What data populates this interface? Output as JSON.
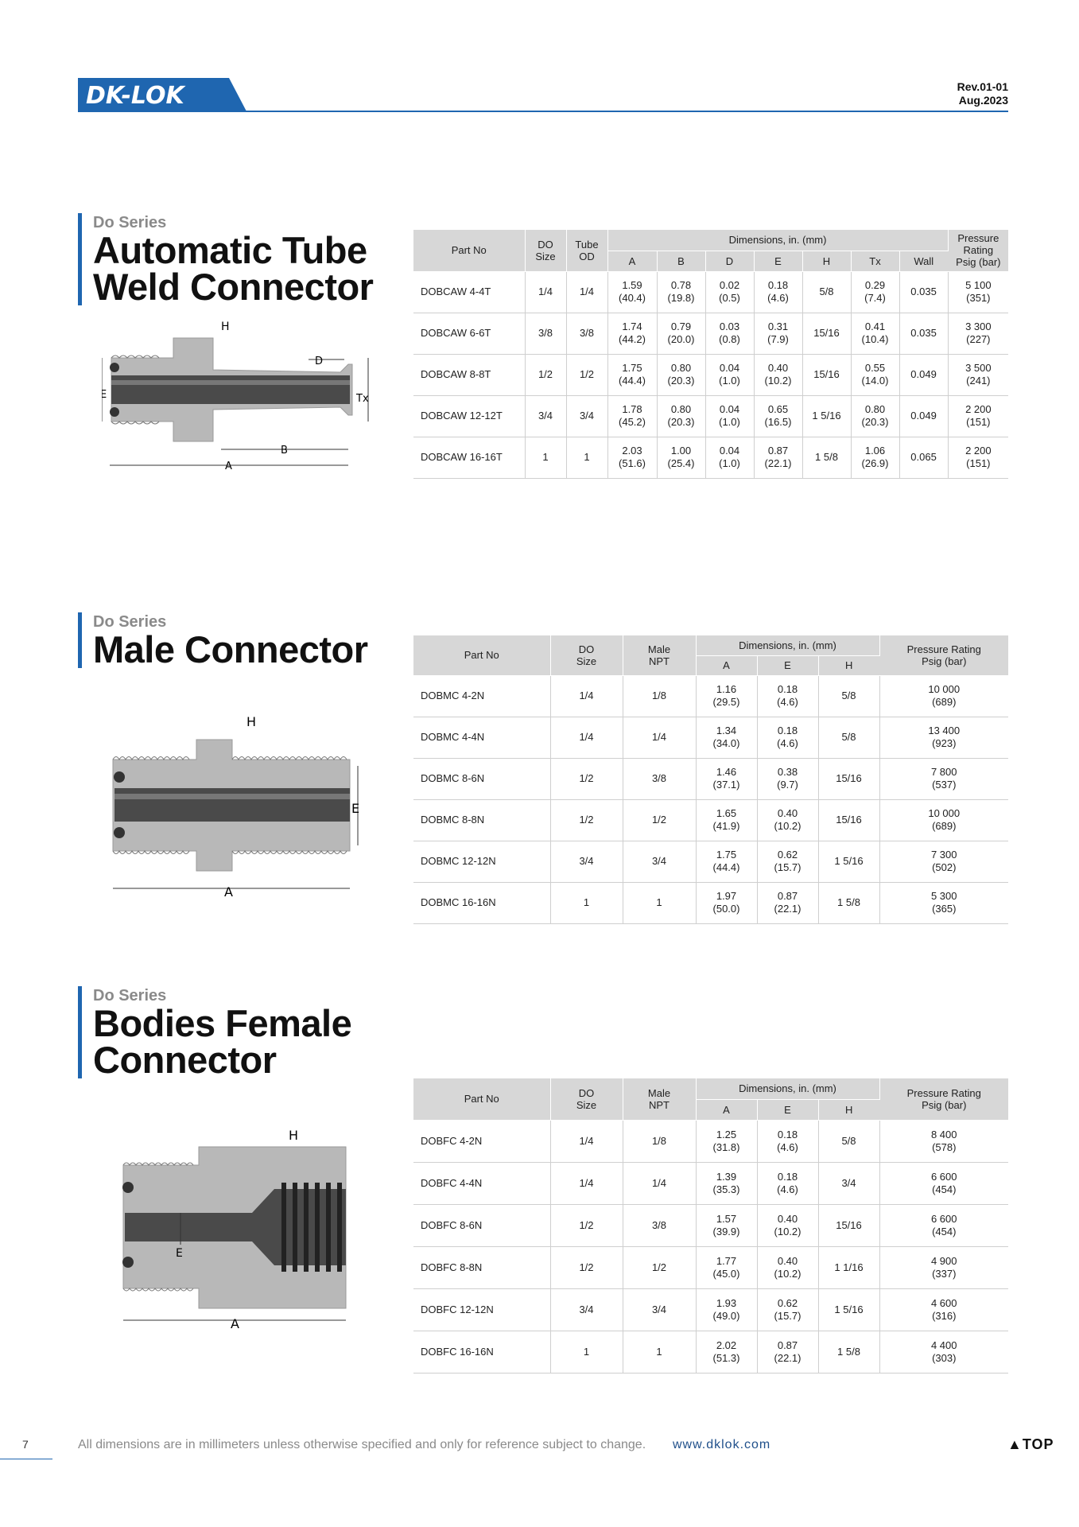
{
  "header": {
    "logo_text": "DK-LOK",
    "rev": "Rev.01-01",
    "date": "Aug.2023"
  },
  "sections": [
    {
      "series": "Do Series",
      "title_lines": [
        "Automatic Tube",
        "Weld Connector"
      ],
      "diagram_labels": [
        "H",
        "D",
        "E",
        "Tx",
        "B",
        "A"
      ],
      "table": {
        "top_headers": [
          "Part No",
          "DO\nSize",
          "Tube\nOD",
          "Dimensions, in. (mm)",
          "Pressure\nRating\nPsig (bar)"
        ],
        "dim_headers": [
          "A",
          "B",
          "D",
          "E",
          "H",
          "Tx",
          "Wall"
        ],
        "rows": [
          [
            "DOBCAW 4-4T",
            "1/4",
            "1/4",
            "1.59\n(40.4)",
            "0.78\n(19.8)",
            "0.02\n(0.5)",
            "0.18\n(4.6)",
            "5/8",
            "0.29\n(7.4)",
            "0.035",
            "5 100\n(351)"
          ],
          [
            "DOBCAW 6-6T",
            "3/8",
            "3/8",
            "1.74\n(44.2)",
            "0.79\n(20.0)",
            "0.03\n(0.8)",
            "0.31\n(7.9)",
            "15/16",
            "0.41\n(10.4)",
            "0.035",
            "3 300\n(227)"
          ],
          [
            "DOBCAW 8-8T",
            "1/2",
            "1/2",
            "1.75\n(44.4)",
            "0.80\n(20.3)",
            "0.04\n(1.0)",
            "0.40\n(10.2)",
            "15/16",
            "0.55\n(14.0)",
            "0.049",
            "3 500\n(241)"
          ],
          [
            "DOBCAW 12-12T",
            "3/4",
            "3/4",
            "1.78\n(45.2)",
            "0.80\n(20.3)",
            "0.04\n(1.0)",
            "0.65\n(16.5)",
            "1 5/16",
            "0.80\n(20.3)",
            "0.049",
            "2 200\n(151)"
          ],
          [
            "DOBCAW 16-16T",
            "1",
            "1",
            "2.03\n(51.6)",
            "1.00\n(25.4)",
            "0.04\n(1.0)",
            "0.87\n(22.1)",
            "1 5/8",
            "1.06\n(26.9)",
            "0.065",
            "2 200\n(151)"
          ]
        ]
      }
    },
    {
      "series": "Do Series",
      "title_lines": [
        "Male Connector"
      ],
      "diagram_labels": [
        "H",
        "E",
        "A"
      ],
      "table": {
        "top_headers": [
          "Part No",
          "DO\nSize",
          "Male\nNPT",
          "Dimensions, in. (mm)",
          "Pressure Rating\nPsig (bar)"
        ],
        "dim_headers": [
          "A",
          "E",
          "H"
        ],
        "rows": [
          [
            "DOBMC 4-2N",
            "1/4",
            "1/8",
            "1.16\n(29.5)",
            "0.18\n(4.6)",
            "5/8",
            "10 000\n(689)"
          ],
          [
            "DOBMC 4-4N",
            "1/4",
            "1/4",
            "1.34\n(34.0)",
            "0.18\n(4.6)",
            "5/8",
            "13 400\n(923)"
          ],
          [
            "DOBMC 8-6N",
            "1/2",
            "3/8",
            "1.46\n(37.1)",
            "0.38\n(9.7)",
            "15/16",
            "7 800\n(537)"
          ],
          [
            "DOBMC 8-8N",
            "1/2",
            "1/2",
            "1.65\n(41.9)",
            "0.40\n(10.2)",
            "15/16",
            "10 000\n(689)"
          ],
          [
            "DOBMC 12-12N",
            "3/4",
            "3/4",
            "1.75\n(44.4)",
            "0.62\n(15.7)",
            "1 5/16",
            "7 300\n(502)"
          ],
          [
            "DOBMC 16-16N",
            "1",
            "1",
            "1.97\n(50.0)",
            "0.87\n(22.1)",
            "1 5/8",
            "5 300\n(365)"
          ]
        ]
      }
    },
    {
      "series": "Do Series",
      "title_lines": [
        "Bodies Female",
        "Connector"
      ],
      "diagram_labels": [
        "H",
        "E",
        "A"
      ],
      "table": {
        "top_headers": [
          "Part No",
          "DO\nSize",
          "Male\nNPT",
          "Dimensions, in. (mm)",
          "Pressure Rating\nPsig (bar)"
        ],
        "dim_headers": [
          "A",
          "E",
          "H"
        ],
        "rows": [
          [
            "DOBFC 4-2N",
            "1/4",
            "1/8",
            "1.25\n(31.8)",
            "0.18\n(4.6)",
            "5/8",
            "8 400\n(578)"
          ],
          [
            "DOBFC 4-4N",
            "1/4",
            "1/4",
            "1.39\n(35.3)",
            "0.18\n(4.6)",
            "3/4",
            "6 600\n(454)"
          ],
          [
            "DOBFC 8-6N",
            "1/2",
            "3/8",
            "1.57\n(39.9)",
            "0.40\n(10.2)",
            "15/16",
            "6 600\n(454)"
          ],
          [
            "DOBFC 8-8N",
            "1/2",
            "1/2",
            "1.77\n(45.0)",
            "0.40\n(10.2)",
            "1 1/16",
            "4 900\n(337)"
          ],
          [
            "DOBFC 12-12N",
            "3/4",
            "3/4",
            "1.93\n(49.0)",
            "0.62\n(15.7)",
            "1 5/16",
            "4 600\n(316)"
          ],
          [
            "DOBFC 16-16N",
            "1",
            "1",
            "2.02\n(51.3)",
            "0.87\n(22.1)",
            "1 5/8",
            "4 400\n(303)"
          ]
        ]
      }
    }
  ],
  "footer": {
    "page_number": "7",
    "note": "All dimensions are in millimeters unless otherwise specified and only for reference subject to change.",
    "url": "www.dklok.com",
    "top_label": "▲TOP"
  },
  "colors": {
    "brand_blue": "#1f66b0",
    "header_gray": "#d7d7d7"
  }
}
